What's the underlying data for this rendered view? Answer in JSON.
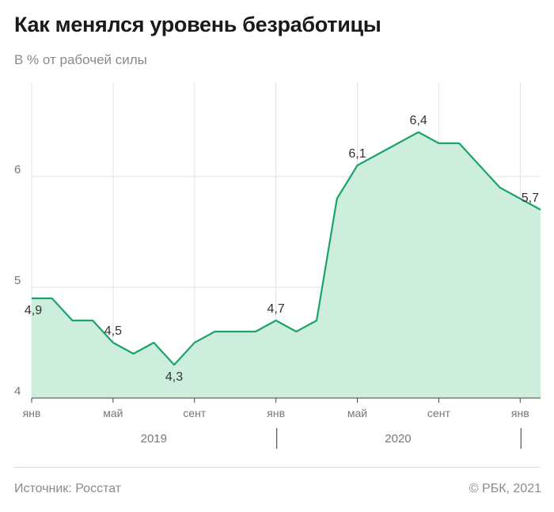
{
  "header": {
    "title": "Как менялся уровень безработицы",
    "subtitle": "В % от рабочей силы"
  },
  "footer": {
    "source": "Источник: Росстат",
    "copyright": "© РБК, 2021"
  },
  "colors": {
    "line": "#1aa36b",
    "area": "#cdeedd",
    "grid": "#e2e2e2",
    "axis": "#444444",
    "label": "#333333"
  },
  "chart_data": {
    "type": "area",
    "title": "Как менялся уровень безработицы",
    "ylabel": "В % от рабочей силы",
    "ylim": [
      4,
      6.85
    ],
    "yticks": [
      "4",
      "5",
      "6"
    ],
    "grid": true,
    "x": [
      "2019-01",
      "2019-02",
      "2019-03",
      "2019-04",
      "2019-05",
      "2019-06",
      "2019-07",
      "2019-08",
      "2019-09",
      "2019-10",
      "2019-11",
      "2019-12",
      "2020-01",
      "2020-02",
      "2020-03",
      "2020-04",
      "2020-05",
      "2020-06",
      "2020-07",
      "2020-08",
      "2020-09",
      "2020-10",
      "2020-11",
      "2020-12",
      "2021-01",
      "2021-02"
    ],
    "values": [
      4.9,
      4.9,
      4.7,
      4.7,
      4.5,
      4.4,
      4.5,
      4.3,
      4.5,
      4.6,
      4.6,
      4.6,
      4.7,
      4.6,
      4.7,
      5.8,
      6.1,
      6.2,
      6.3,
      6.4,
      6.3,
      6.3,
      6.1,
      5.9,
      5.8,
      5.7
    ],
    "month_ticks": [
      {
        "index": 0,
        "label": "янв"
      },
      {
        "index": 4,
        "label": "май"
      },
      {
        "index": 8,
        "label": "сент"
      },
      {
        "index": 12,
        "label": "янв"
      },
      {
        "index": 16,
        "label": "май"
      },
      {
        "index": 20,
        "label": "сент"
      },
      {
        "index": 24,
        "label": "янв"
      }
    ],
    "year_labels": [
      {
        "label": "2019",
        "start": 0,
        "end": 12
      },
      {
        "label": "2020",
        "start": 12,
        "end": 24
      }
    ],
    "year_separators": [
      12,
      24
    ],
    "annotations": [
      {
        "index": 0,
        "label": "4,9",
        "pos": "below"
      },
      {
        "index": 4,
        "label": "4,5",
        "pos": "above"
      },
      {
        "index": 7,
        "label": "4,3",
        "pos": "below"
      },
      {
        "index": 12,
        "label": "4,7",
        "pos": "above"
      },
      {
        "index": 16,
        "label": "6,1",
        "pos": "above"
      },
      {
        "index": 19,
        "label": "6,4",
        "pos": "above"
      },
      {
        "index": 25,
        "label": "5,7",
        "pos": "above"
      }
    ]
  }
}
